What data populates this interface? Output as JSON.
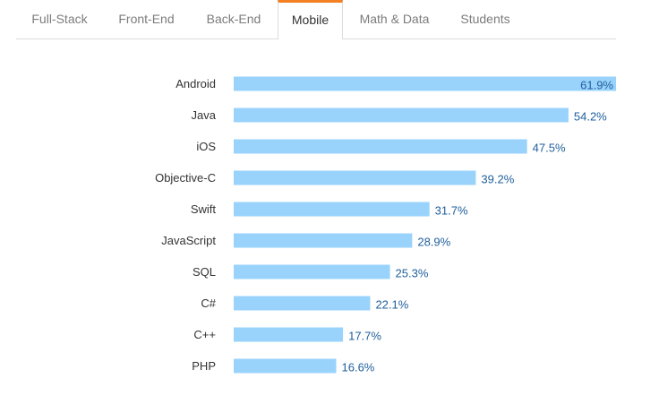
{
  "tabs": [
    {
      "label": "Full-Stack",
      "active": false
    },
    {
      "label": "Front-End",
      "active": false
    },
    {
      "label": "Back-End",
      "active": false
    },
    {
      "label": "Mobile",
      "active": true
    },
    {
      "label": "Math & Data",
      "active": false
    },
    {
      "label": "Students",
      "active": false
    }
  ],
  "colors": {
    "bar": "#99d3fc",
    "value_label": "#1f5f9c",
    "active_tab_accent": "#f48024"
  },
  "chart_data": {
    "type": "bar",
    "orientation": "horizontal",
    "categories": [
      "Android",
      "Java",
      "iOS",
      "Objective-C",
      "Swift",
      "JavaScript",
      "SQL",
      "C#",
      "C++",
      "PHP"
    ],
    "values": [
      61.9,
      54.2,
      47.5,
      39.2,
      31.7,
      28.9,
      25.3,
      22.1,
      17.7,
      16.6
    ],
    "value_labels": [
      "61.9%",
      "54.2%",
      "47.5%",
      "39.2%",
      "31.7%",
      "28.9%",
      "25.3%",
      "22.1%",
      "17.7%",
      "16.6%"
    ],
    "xlim": [
      0,
      61.9
    ],
    "grid": false,
    "legend": false
  }
}
